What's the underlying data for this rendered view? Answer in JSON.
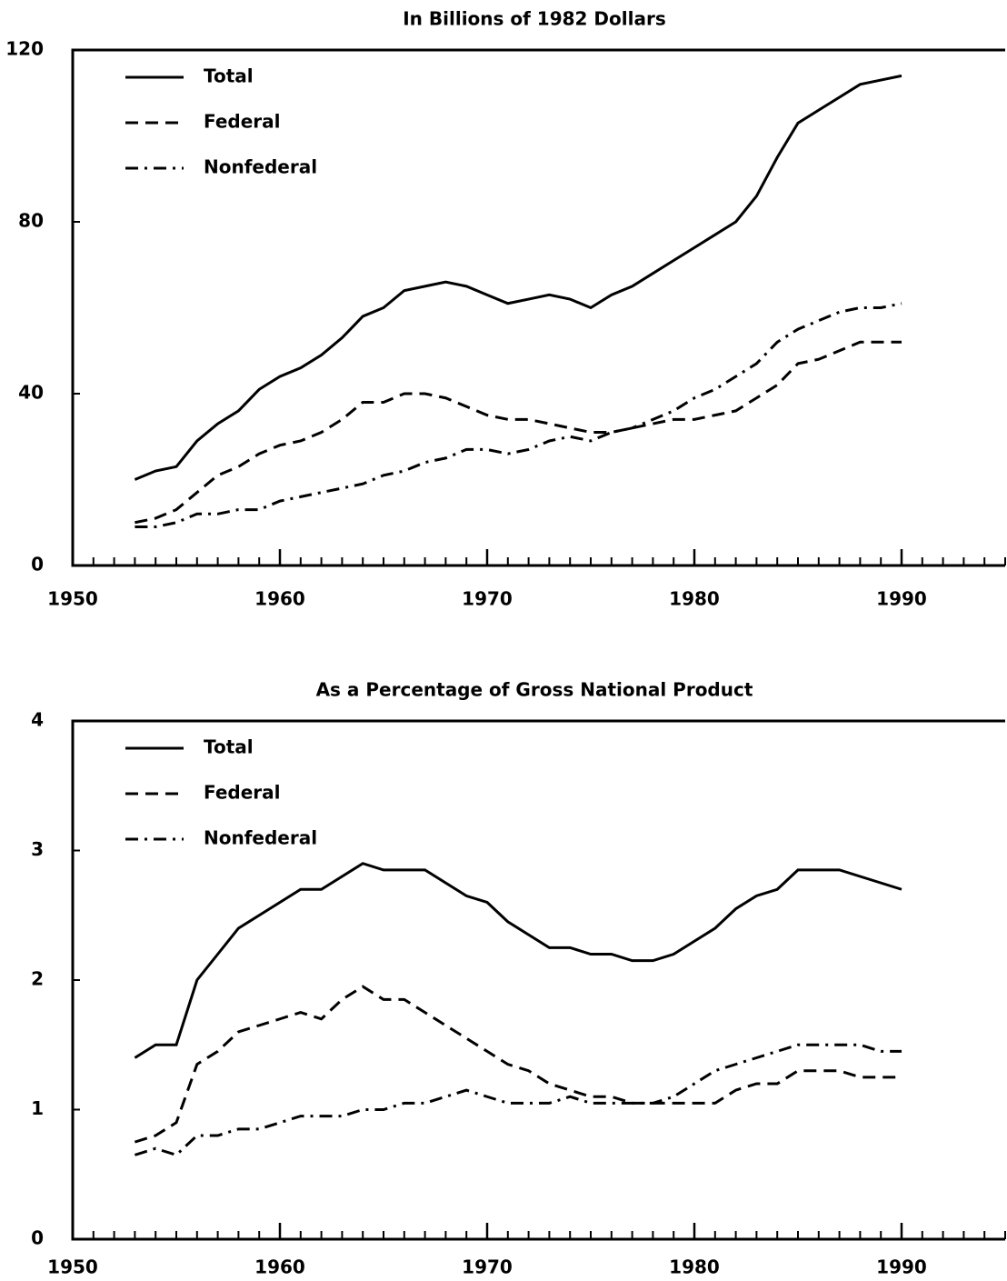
{
  "chart_data": [
    {
      "type": "line",
      "title": "In Billions of 1982 Dollars",
      "x": [
        1953,
        1954,
        1955,
        1956,
        1957,
        1958,
        1959,
        1960,
        1961,
        1962,
        1963,
        1964,
        1965,
        1966,
        1967,
        1968,
        1969,
        1970,
        1971,
        1972,
        1973,
        1974,
        1975,
        1976,
        1977,
        1978,
        1979,
        1980,
        1981,
        1982,
        1983,
        1984,
        1985,
        1986,
        1987,
        1988,
        1989,
        1990
      ],
      "series": [
        {
          "name": "Total",
          "color": "#000000",
          "dash": "solid",
          "values": [
            20,
            22,
            23,
            29,
            33,
            36,
            41,
            44,
            46,
            49,
            53,
            58,
            60,
            64,
            65,
            66,
            65,
            63,
            61,
            62,
            63,
            62,
            60,
            63,
            65,
            68,
            71,
            74,
            77,
            80,
            86,
            95,
            103,
            106,
            109,
            112,
            113,
            114
          ]
        },
        {
          "name": "Federal",
          "color": "#000000",
          "dash": "dashed",
          "values": [
            10,
            11,
            13,
            17,
            21,
            23,
            26,
            28,
            29,
            31,
            34,
            38,
            38,
            40,
            40,
            39,
            37,
            35,
            34,
            34,
            33,
            32,
            31,
            31,
            32,
            33,
            34,
            34,
            35,
            36,
            39,
            42,
            47,
            48,
            50,
            52,
            52,
            52
          ]
        },
        {
          "name": "Nonfederal",
          "color": "#000000",
          "dash": "dashdot",
          "values": [
            9,
            9,
            10,
            12,
            12,
            13,
            13,
            15,
            16,
            17,
            18,
            19,
            21,
            22,
            24,
            25,
            27,
            27,
            26,
            27,
            29,
            30,
            29,
            31,
            32,
            34,
            36,
            39,
            41,
            44,
            47,
            52,
            55,
            57,
            59,
            60,
            60,
            61
          ]
        }
      ],
      "xlim": [
        1950,
        1995
      ],
      "xticks": [
        1950,
        1960,
        1970,
        1980,
        1990
      ],
      "ylim": [
        0,
        120
      ],
      "yticks": [
        0,
        40,
        80,
        120
      ],
      "legend": "upper left"
    },
    {
      "type": "line",
      "title": "As a Percentage of Gross National Product",
      "x": [
        1953,
        1954,
        1955,
        1956,
        1957,
        1958,
        1959,
        1960,
        1961,
        1962,
        1963,
        1964,
        1965,
        1966,
        1967,
        1968,
        1969,
        1970,
        1971,
        1972,
        1973,
        1974,
        1975,
        1976,
        1977,
        1978,
        1979,
        1980,
        1981,
        1982,
        1983,
        1984,
        1985,
        1986,
        1987,
        1988,
        1989,
        1990
      ],
      "series": [
        {
          "name": "Total",
          "color": "#000000",
          "dash": "solid",
          "values": [
            1.4,
            1.5,
            1.5,
            2.0,
            2.2,
            2.4,
            2.5,
            2.6,
            2.7,
            2.7,
            2.8,
            2.9,
            2.85,
            2.85,
            2.85,
            2.75,
            2.65,
            2.6,
            2.45,
            2.35,
            2.25,
            2.25,
            2.2,
            2.2,
            2.15,
            2.15,
            2.2,
            2.3,
            2.4,
            2.55,
            2.65,
            2.7,
            2.85,
            2.85,
            2.85,
            2.8,
            2.75,
            2.7
          ]
        },
        {
          "name": "Federal",
          "color": "#000000",
          "dash": "dashed",
          "values": [
            0.75,
            0.8,
            0.9,
            1.35,
            1.45,
            1.6,
            1.65,
            1.7,
            1.75,
            1.7,
            1.85,
            1.95,
            1.85,
            1.85,
            1.75,
            1.65,
            1.55,
            1.45,
            1.35,
            1.3,
            1.2,
            1.15,
            1.1,
            1.1,
            1.05,
            1.05,
            1.05,
            1.05,
            1.05,
            1.15,
            1.2,
            1.2,
            1.3,
            1.3,
            1.3,
            1.25,
            1.25,
            1.25
          ]
        },
        {
          "name": "Nonfederal",
          "color": "#000000",
          "dash": "dashdot",
          "values": [
            0.65,
            0.7,
            0.65,
            0.8,
            0.8,
            0.85,
            0.85,
            0.9,
            0.95,
            0.95,
            0.95,
            1.0,
            1.0,
            1.05,
            1.05,
            1.1,
            1.15,
            1.1,
            1.05,
            1.05,
            1.05,
            1.1,
            1.05,
            1.05,
            1.05,
            1.05,
            1.1,
            1.2,
            1.3,
            1.35,
            1.4,
            1.45,
            1.5,
            1.5,
            1.5,
            1.5,
            1.45,
            1.45
          ]
        }
      ],
      "xlim": [
        1950,
        1995
      ],
      "xticks": [
        1950,
        1960,
        1970,
        1980,
        1990
      ],
      "ylim": [
        0,
        4
      ],
      "yticks": [
        0,
        1,
        2,
        3,
        4
      ],
      "legend": "upper left"
    }
  ]
}
